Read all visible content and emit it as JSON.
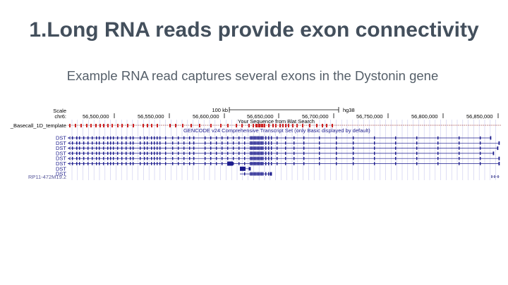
{
  "slide": {
    "title": "1.Long RNA reads provide exon connectivity",
    "subtitle": "Example RNA read captures several exons in the Dystonin gene"
  },
  "browser": {
    "scale_label": "Scale",
    "scale_value": "100 kb",
    "assembly": "hg38",
    "chrom_label": "chr6:",
    "positions": [
      "56,500,000",
      "56,550,000",
      "56,600,000",
      "56,650,000",
      "56,700,000",
      "56,750,000",
      "56,800,000",
      "56,850,000"
    ],
    "blat_track_title": "Your Sequence from Blat Search",
    "blat_track_label": "_Basecall_1D_template",
    "gencode_track_title": "GENCODE v24 Comprehensive Transcript Set (only Basic displayed by default)",
    "transcripts": [
      "DST",
      "DST",
      "DST",
      "DST",
      "DST",
      "DST",
      "DST",
      "DST"
    ],
    "extra_gene": "RP11-472M19.2"
  },
  "colors": {
    "title": "#434f5c",
    "subtitle": "#555f69",
    "blat_exon": "#cc2222",
    "gene": "#1a1a8c",
    "grid": "#c8c8ee"
  }
}
